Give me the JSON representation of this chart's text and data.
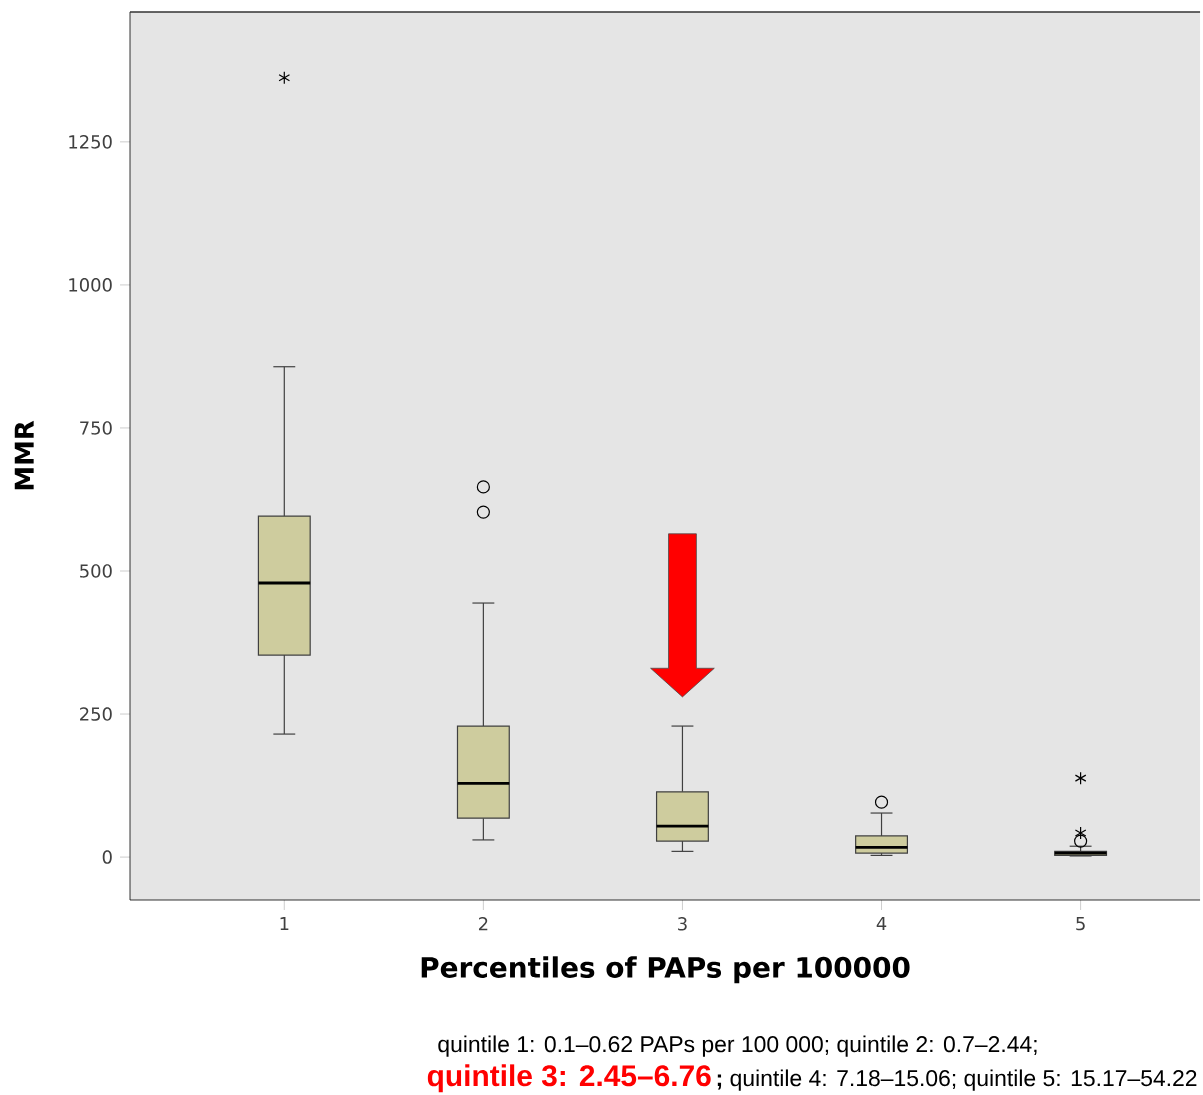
{
  "chart_data": {
    "type": "box",
    "xlabel": "Percentiles of PAPs per 100000",
    "ylabel": "MMR",
    "categories": [
      "1",
      "2",
      "3",
      "4",
      "5"
    ],
    "color": "#cecc9e",
    "boxes": [
      {
        "low": 215,
        "q1": 353,
        "median": 479,
        "q3": 596,
        "high": 857,
        "outliers": [
          1362
        ]
      },
      {
        "low": 30,
        "q1": 68,
        "median": 129,
        "q3": 229,
        "high": 444,
        "outliers": [
          603,
          647
        ]
      },
      {
        "low": 10,
        "q1": 28,
        "median": 54,
        "q3": 114,
        "high": 229
      },
      {
        "low": 3,
        "q1": 7,
        "median": 17,
        "q3": 37,
        "high": 77,
        "outliers": [
          96
        ]
      },
      {
        "low": 2,
        "q1": 3,
        "median": 7,
        "q3": 10,
        "high": 19,
        "outliers": [
          28,
          42,
          138
        ]
      }
    ],
    "ylim": [
      -75,
      1477
    ],
    "yticks": [
      0,
      250,
      500,
      750,
      1000,
      1250
    ],
    "annotations": [
      "quintile 1: 0.1–0.62 PAPs per 100 000; quintile 2: 0.7–2.44;",
      "quintile 3: 2.45–6.76",
      "**;** quintile 4: 7.18–15.06; quintile 5: 15.17–54.22"
    ]
  }
}
